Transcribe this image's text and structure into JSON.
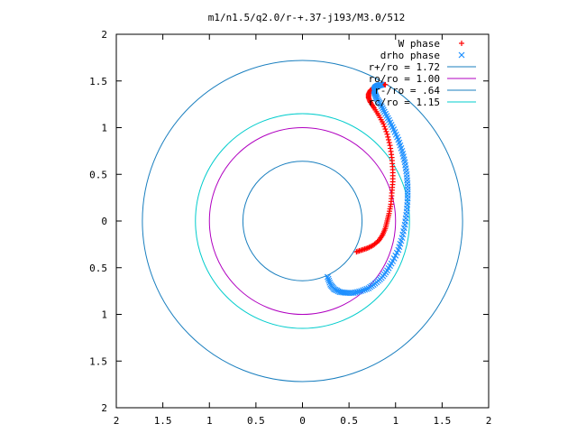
{
  "chart_data": {
    "type": "scatter",
    "title": "m1/n1.5/q2.0/r-+.37-j193/M3.0/512",
    "xlabel": "",
    "ylabel": "",
    "xlim": [
      -2,
      2
    ],
    "ylim": [
      -2,
      2
    ],
    "x_tick_labels": [
      "2",
      "1.5",
      "1",
      "0.5",
      "0",
      "0.5",
      "1",
      "1.5",
      "2"
    ],
    "y_tick_labels": [
      "2",
      "1.5",
      "1",
      "0.5",
      "0",
      "0.5",
      "1",
      "1.5",
      "2"
    ],
    "tick_values": [
      -2,
      -1.5,
      -1,
      -0.5,
      0,
      0.5,
      1,
      1.5,
      2
    ],
    "grid": false,
    "legend_position": "top-right",
    "series": [
      {
        "name": "W phase",
        "marker": "plus",
        "color": "#ff0000",
        "x": [
          0.58,
          0.64,
          0.7,
          0.76,
          0.82,
          0.86,
          0.89,
          0.91,
          0.93,
          0.95,
          0.96,
          0.97,
          0.97,
          0.96,
          0.94,
          0.91,
          0.87,
          0.82,
          0.77,
          0.73,
          0.71,
          0.71,
          0.73,
          0.77,
          0.81,
          0.86,
          0.89
        ],
        "y": [
          -0.33,
          -0.31,
          -0.29,
          -0.26,
          -0.21,
          -0.15,
          -0.08,
          0.0,
          0.08,
          0.18,
          0.3,
          0.42,
          0.55,
          0.68,
          0.81,
          0.93,
          1.04,
          1.13,
          1.21,
          1.27,
          1.32,
          1.36,
          1.4,
          1.43,
          1.45,
          1.46,
          1.46
        ]
      },
      {
        "name": "drho phase",
        "marker": "cross",
        "color": "#1e90ff",
        "x": [
          0.27,
          0.3,
          0.34,
          0.4,
          0.47,
          0.55,
          0.63,
          0.71,
          0.78,
          0.85,
          0.91,
          0.97,
          1.03,
          1.07,
          1.1,
          1.12,
          1.13,
          1.13,
          1.12,
          1.1,
          1.07,
          1.03,
          0.98,
          0.93,
          0.88,
          0.84,
          0.8,
          0.78,
          0.77,
          0.78,
          0.81,
          0.85
        ],
        "y": [
          -0.6,
          -0.68,
          -0.73,
          -0.76,
          -0.77,
          -0.77,
          -0.75,
          -0.72,
          -0.67,
          -0.61,
          -0.53,
          -0.43,
          -0.31,
          -0.18,
          -0.04,
          0.1,
          0.24,
          0.37,
          0.5,
          0.63,
          0.75,
          0.87,
          0.98,
          1.08,
          1.17,
          1.25,
          1.31,
          1.36,
          1.4,
          1.43,
          1.45,
          1.46
        ]
      },
      {
        "name": "r+/ro = 1.72",
        "type": "circle",
        "radius": 1.72,
        "color": "#1a7fbf"
      },
      {
        "name": "ro/ro = 1.00",
        "type": "circle",
        "radius": 1.0,
        "color": "#b000c0"
      },
      {
        "name": "r-/ro = .64",
        "type": "circle",
        "radius": 0.64,
        "color": "#1a7fbf"
      },
      {
        "name": "rc/ro = 1.15",
        "type": "circle",
        "radius": 1.15,
        "color": "#00cccc"
      }
    ]
  }
}
